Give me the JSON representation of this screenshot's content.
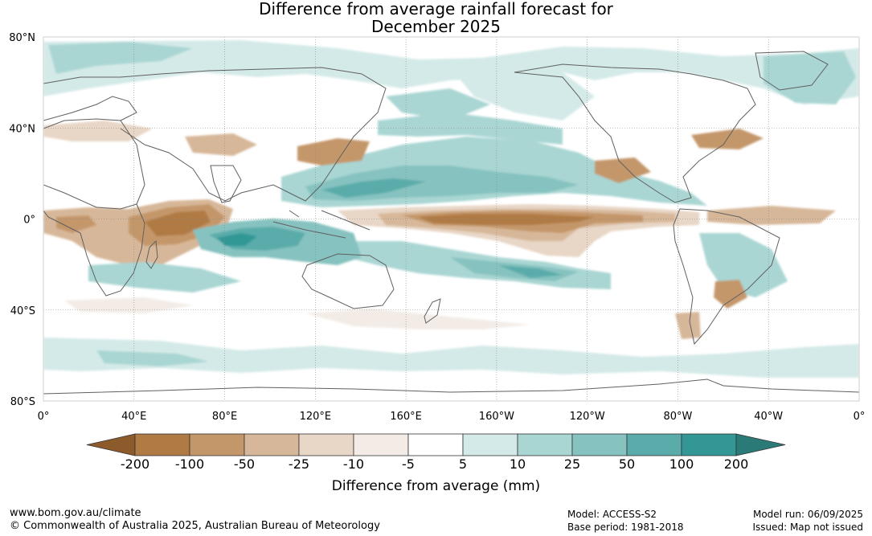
{
  "title_line1": "Difference from average rainfall forecast for",
  "title_line2": "December 2025",
  "lat_labels": [
    "80°N",
    "40°N",
    "0°",
    "40°S",
    "80°S"
  ],
  "lon_labels": [
    "0°",
    "40°E",
    "80°E",
    "120°E",
    "160°E",
    "160°W",
    "120°W",
    "80°W",
    "40°W",
    "0°"
  ],
  "legend": {
    "title": "Difference from average (mm)",
    "ticks": [
      "-200",
      "-100",
      "-50",
      "-25",
      "-10",
      "-5",
      "5",
      "10",
      "25",
      "50",
      "100",
      "200"
    ],
    "colors": [
      "#8c5a2b",
      "#b07a45",
      "#c4976a",
      "#d7b799",
      "#e8d6c6",
      "#f3ece6",
      "#ffffff",
      "#d4eae8",
      "#a9d6d3",
      "#86c2c0",
      "#5aacaa",
      "#339895",
      "#2a7b78"
    ]
  },
  "footer": {
    "url": "www.bom.gov.au/climate",
    "copyright": "© Commonwealth of Australia 2025, Australian Bureau of Meteorology",
    "model": "Model: ACCESS-S2",
    "base_period": "Base period: 1981-2018",
    "model_run": "Model run: 06/09/2025",
    "issued": "Issued: Map not issued"
  }
}
